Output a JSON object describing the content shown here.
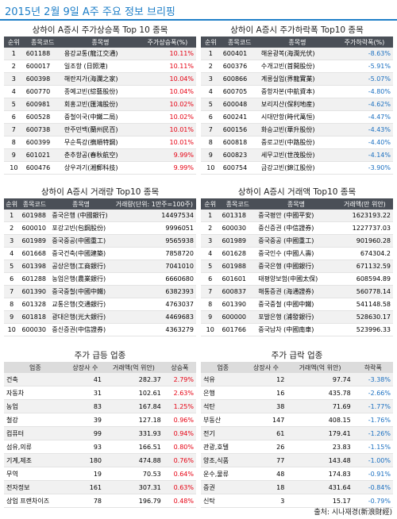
{
  "title": "2015년 2월 9일 A주 주요 정보 브리핑",
  "tables": [
    {
      "heading": "상하이 A증시 주가상승폭 Top 10 종목",
      "columns": [
        "순위",
        "종목코드",
        "종목명",
        "주가상승폭(%)"
      ],
      "rows": [
        [
          "1",
          "601188",
          "용강교통(龍江交通)",
          "10.11%"
        ],
        [
          "2",
          "600017",
          "일조항 (日照港)",
          "10.11%"
        ],
        [
          "3",
          "600398",
          "해란지가(海瀾之家)",
          "10.04%"
        ],
        [
          "4",
          "600770",
          "종예고빈(綜藝股份)",
          "10.04%"
        ],
        [
          "5",
          "600981",
          "회홍고빈(匯鴻股份)",
          "10.02%"
        ],
        [
          "6",
          "600528",
          "중철이국(中鐵二局)",
          "10.02%"
        ],
        [
          "7",
          "600738",
          "란주민백(蘭州民百)",
          "10.01%"
        ],
        [
          "8",
          "600399",
          "무순특강(撫順特鋼)",
          "10.01%"
        ],
        [
          "9",
          "601021",
          "춘추항공(春秋航空)",
          "9.99%"
        ],
        [
          "10",
          "600476",
          "상우과기(湘郵科技)",
          "9.99%"
        ]
      ]
    },
    {
      "heading": "상하이 A증시 주가하락폭 Top10 종목",
      "columns": [
        "순위",
        "종목코드",
        "종목명",
        "주가하락폭(%)"
      ],
      "rows": [
        [
          "1",
          "600401",
          "해윤광복(海潤光伏)",
          "-8.63%"
        ],
        [
          "2",
          "600376",
          "수개고빈(首開股份)",
          "-5.91%"
        ],
        [
          "3",
          "600866",
          "계릉실업(界龍實業)",
          "-5.07%"
        ],
        [
          "4",
          "600705",
          "중항자본(中航資本)",
          "-4.80%"
        ],
        [
          "5",
          "600048",
          "보리지산(保利地産)",
          "-4.62%"
        ],
        [
          "6",
          "600241",
          "시대만항(時代萬恒)",
          "-4.47%"
        ],
        [
          "7",
          "600156",
          "화승고빈(華升股份)",
          "-4.43%"
        ],
        [
          "8",
          "600818",
          "중로고빈(中路股份)",
          "-4.40%"
        ],
        [
          "9",
          "600823",
          "세무고빈(世茂股份)",
          "-4.14%"
        ],
        [
          "10",
          "600754",
          "금강고빈(錦江股份)",
          "-3.90%"
        ]
      ]
    },
    {
      "heading": "상하이 A증시 거래량 Top10 종목",
      "columns": [
        "순위",
        "종목코드",
        "종목명",
        "거래량(단위: 1만주=100주)"
      ],
      "rows": [
        [
          "1",
          "601988",
          "중국은행 (中國銀行)",
          "14497534"
        ],
        [
          "2",
          "600010",
          "포강고빈(包鋼股份)",
          "9996051"
        ],
        [
          "3",
          "601989",
          "중국중공(中國重工)",
          "9565938"
        ],
        [
          "4",
          "601668",
          "중국건축(中國建築)",
          "7858720"
        ],
        [
          "5",
          "601398",
          "공상은행(工商銀行)",
          "7041010"
        ],
        [
          "6",
          "601288",
          "농업은행(農業銀行)",
          "6660680"
        ],
        [
          "7",
          "601390",
          "중국중철(中國中鐵)",
          "6382393"
        ],
        [
          "8",
          "601328",
          "교통은행(交通銀行)",
          "4763037"
        ],
        [
          "9",
          "601818",
          "광대은행(光大銀行)",
          "4469683"
        ],
        [
          "10",
          "600030",
          "중신증권(中信證券)",
          "4363279"
        ]
      ]
    },
    {
      "heading": "상하이 A증시 거래액 Top10 종목",
      "columns": [
        "순위",
        "종목코드",
        "종목명",
        "거래액(만 위안)"
      ],
      "rows": [
        [
          "1",
          "601318",
          "중국평안 (中國平安)",
          "1623193.22"
        ],
        [
          "2",
          "600030",
          "중신증권 (中信證券)",
          "1227737.03"
        ],
        [
          "3",
          "601989",
          "중국중공 (中國重工)",
          "901960.28"
        ],
        [
          "4",
          "601628",
          "중국인수 (中國人壽)",
          "674304.2"
        ],
        [
          "5",
          "601988",
          "중국은행 (中國銀行)",
          "671132.59"
        ],
        [
          "6",
          "601601",
          "태평양보험(中國太保)",
          "608594.89"
        ],
        [
          "7",
          "600837",
          "해통증권 (海通證券)",
          "560778.14"
        ],
        [
          "8",
          "601390",
          "중국중철 (中國中鐵)",
          "541148.58"
        ],
        [
          "9",
          "600000",
          "포발은행 (浦發銀行)",
          "528630.17"
        ],
        [
          "10",
          "601766",
          "중국남차 (中國南車)",
          "523996.33"
        ]
      ]
    },
    {
      "heading": "주가 급등 업종",
      "columns": [
        "업종",
        "상장사 수",
        "거래액(억 위안)",
        "상승폭"
      ],
      "rows": [
        [
          "건축",
          "41",
          "282.37",
          "2.79%"
        ],
        [
          "자동차",
          "31",
          "102.61",
          "2.63%"
        ],
        [
          "농업",
          "83",
          "167.84",
          "1.25%"
        ],
        [
          "철강",
          "39",
          "127.18",
          "0.96%"
        ],
        [
          "컴퓨터",
          "99",
          "331.93",
          "0.94%"
        ],
        [
          "섬유,의류",
          "93",
          "166.51",
          "0.80%"
        ],
        [
          "기계,제조",
          "180",
          "474.88",
          "0.76%"
        ],
        [
          "무역",
          "19",
          "70.53",
          "0.64%"
        ],
        [
          "전자정보",
          "161",
          "307.31",
          "0.63%"
        ],
        [
          "상업 프랜차이즈",
          "78",
          "196.79",
          "0.48%"
        ]
      ]
    },
    {
      "heading": "주가 급락 업종",
      "columns": [
        "업종",
        "상장사 수",
        "거래액(억 위안)",
        "하락폭"
      ],
      "rows": [
        [
          "석유",
          "12",
          "97.74",
          "-3.38%"
        ],
        [
          "은행",
          "16",
          "435.78",
          "-2.66%"
        ],
        [
          "석탄",
          "38",
          "71.69",
          "-1.77%"
        ],
        [
          "부동산",
          "147",
          "408.15",
          "-1.76%"
        ],
        [
          "전기",
          "61",
          "179.41",
          "-1.26%"
        ],
        [
          "관광,호텔",
          "26",
          "23.83",
          "-1.15%"
        ],
        [
          "양조,식품",
          "77",
          "143.48",
          "-1.00%"
        ],
        [
          "운수,물류",
          "48",
          "174.83",
          "-0.91%"
        ],
        [
          "증권",
          "18",
          "431.64",
          "-0.84%"
        ],
        [
          "신탁",
          "3",
          "15.17",
          "-0.79%"
        ]
      ]
    }
  ],
  "source": "출처: 시나재경(新浪財經)"
}
